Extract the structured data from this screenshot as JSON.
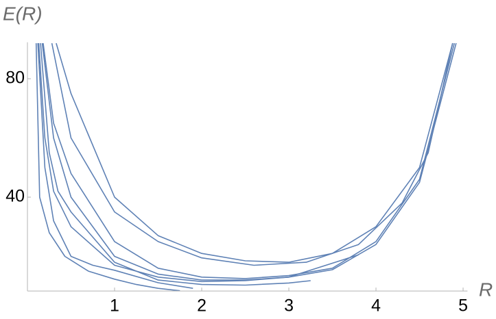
{
  "chart_data": {
    "type": "line",
    "xlabel": "R",
    "ylabel": "E(R)",
    "color": "#5e81b5",
    "xlim": [
      0,
      5.05
    ],
    "ylim": [
      8.3,
      92.3
    ],
    "xticks": [
      1,
      2,
      3,
      4,
      5
    ],
    "yticks": [
      40,
      80
    ],
    "series": [
      {
        "x": [
          0.1,
          0.14,
          0.25,
          0.43,
          0.7,
          1,
          1.25,
          1.5,
          1.75
        ],
        "values": [
          92,
          40,
          28,
          20,
          15,
          12.3,
          10.5,
          9.2,
          8.4
        ]
      },
      {
        "x": [
          0.12,
          0.2,
          0.3,
          0.5,
          0.75,
          1,
          1.5,
          1.9
        ],
        "values": [
          92,
          50,
          32,
          20,
          17,
          15.3,
          11.1,
          9.2
        ]
      },
      {
        "x": [
          0.13,
          0.2,
          0.3,
          0.5,
          1,
          1.5,
          2,
          2.5,
          3,
          3.5,
          4,
          4.5,
          4.92
        ],
        "values": [
          92,
          60,
          42,
          30,
          17,
          13,
          11.5,
          11.8,
          13,
          15.5,
          24,
          45,
          92
        ]
      },
      {
        "x": [
          0.15,
          0.25,
          0.35,
          0.5,
          1,
          1.5,
          2,
          2.5,
          3,
          3.25
        ],
        "values": [
          92,
          55,
          42,
          35,
          18,
          12,
          10.5,
          10.3,
          11,
          11.8
        ]
      },
      {
        "x": [
          0.17,
          0.3,
          0.5,
          1,
          1.5,
          2,
          2.5,
          3,
          3.8
        ],
        "values": [
          92,
          60,
          40,
          20,
          14,
          12,
          12,
          13,
          20.5
        ]
      },
      {
        "x": [
          0.18,
          0.3,
          0.5,
          1,
          1.5,
          2,
          2.5,
          3,
          3.5,
          4,
          4.5,
          4.9
        ],
        "values": [
          92,
          65,
          48,
          25,
          16,
          13,
          12.5,
          13.5,
          16,
          25,
          46,
          92
        ]
      },
      {
        "x": [
          0.28,
          0.5,
          1,
          1.5,
          2,
          2.6,
          3.2,
          3.8,
          4.3,
          4.6,
          4.88
        ],
        "values": [
          92,
          60,
          35,
          25,
          19.5,
          17,
          18,
          24,
          38,
          55,
          92
        ]
      },
      {
        "x": [
          0.33,
          0.5,
          1,
          1.5,
          2,
          2.5,
          3,
          3.5,
          4,
          4.5,
          4.88
        ],
        "values": [
          92,
          75,
          40,
          27,
          21,
          18.5,
          18,
          21,
          30,
          50,
          92
        ]
      }
    ]
  }
}
